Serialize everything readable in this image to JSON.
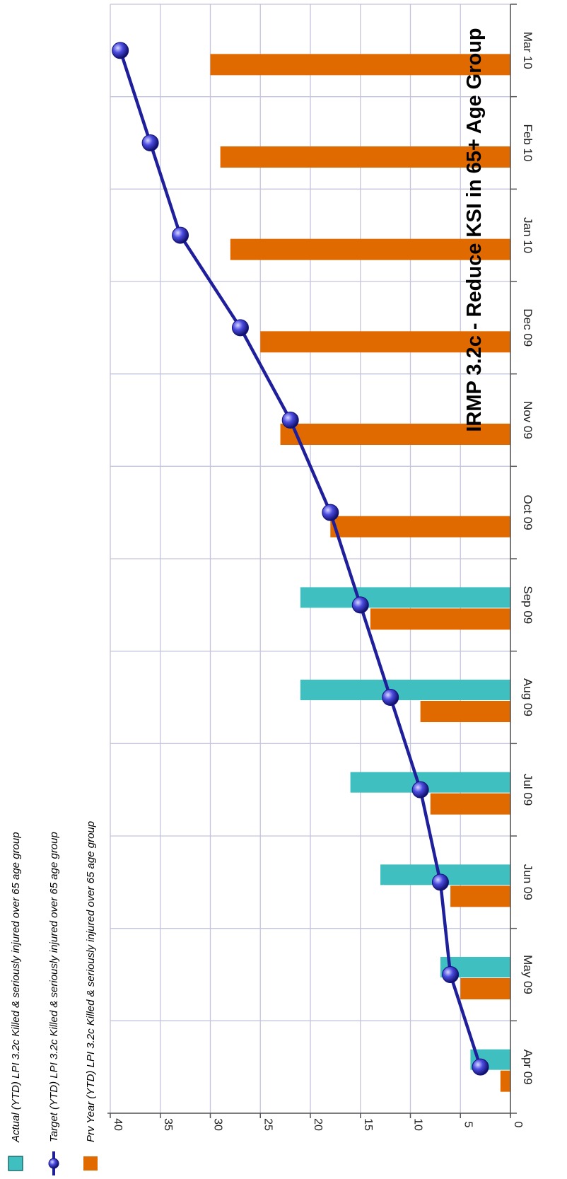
{
  "chart_data": {
    "type": "bar",
    "title": "IRMP 3.2c - Reduce KSI in 65+ Age Group",
    "categories": [
      "Apr 09",
      "May 09",
      "Jun 09",
      "Jul 09",
      "Aug 09",
      "Sep 09",
      "Oct 09",
      "Nov 09",
      "Dec 09",
      "Jan 10",
      "Feb 10",
      "Mar 10"
    ],
    "series": [
      {
        "name": "Actual (YTD) LPI 3.2c Killed & seriously injured over 65 age group",
        "kind": "bar",
        "color": "#3fbfbf",
        "values": [
          4,
          7,
          13,
          16,
          21,
          21,
          null,
          null,
          null,
          null,
          null,
          null
        ]
      },
      {
        "name": "Prv Year (YTD) LPI 3.2c Killed & seriously injured over 65 age group",
        "kind": "bar",
        "color": "#e06a00",
        "values": [
          1,
          5,
          6,
          8,
          9,
          14,
          18,
          23,
          25,
          28,
          29,
          30
        ]
      },
      {
        "name": "Target (YTD) LPI 3.2c Killed & seriously injured over 65 age group",
        "kind": "line",
        "color": "#1f1f9c",
        "values": [
          3,
          6,
          7,
          9,
          12,
          15,
          18,
          22,
          27,
          33,
          36,
          39
        ]
      }
    ],
    "ylim": [
      0,
      40
    ],
    "yticks": [
      0,
      5,
      10,
      15,
      20,
      25,
      30,
      35,
      40
    ],
    "orientation": "rotated 90° clockwise",
    "grid": true,
    "legend": {
      "placement": "left",
      "order": [
        "Actual (YTD) LPI 3.2c Killed & seriously injured over 65 age group",
        "Target (YTD) LPI 3.2c Killed & seriously injured over 65 age group",
        "Prv Year (YTD) LPI 3.2c Killed & seriously injured over 65 age group"
      ]
    }
  }
}
